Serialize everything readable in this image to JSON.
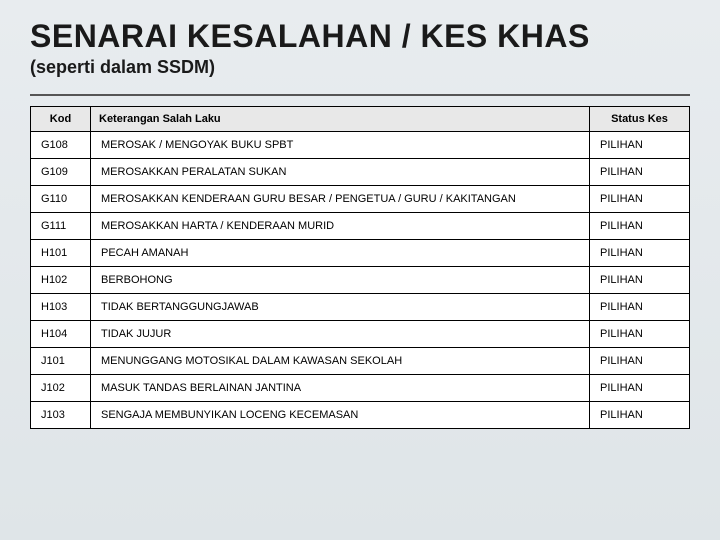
{
  "header": {
    "title": "SENARAI KESALAHAN / KES KHAS",
    "subtitle": "(seperti dalam SSDM)"
  },
  "table": {
    "columns": [
      "Kod",
      "Keterangan Salah Laku",
      "Status Kes"
    ],
    "rows": [
      {
        "kod": "G108",
        "keterangan": "MEROSAK / MENGOYAK BUKU SPBT",
        "status": "PILIHAN"
      },
      {
        "kod": "G109",
        "keterangan": "MEROSAKKAN PERALATAN SUKAN",
        "status": "PILIHAN"
      },
      {
        "kod": "G110",
        "keterangan": "MEROSAKKAN KENDERAAN GURU BESAR / PENGETUA / GURU / KAKITANGAN",
        "status": "PILIHAN"
      },
      {
        "kod": "G111",
        "keterangan": "MEROSAKKAN HARTA / KENDERAAN MURID",
        "status": "PILIHAN"
      },
      {
        "kod": "H101",
        "keterangan": "PECAH AMANAH",
        "status": "PILIHAN"
      },
      {
        "kod": "H102",
        "keterangan": "BERBOHONG",
        "status": "PILIHAN"
      },
      {
        "kod": "H103",
        "keterangan": "TIDAK BERTANGGUNGJAWAB",
        "status": "PILIHAN"
      },
      {
        "kod": "H104",
        "keterangan": "TIDAK JUJUR",
        "status": "PILIHAN"
      },
      {
        "kod": "J101",
        "keterangan": "MENUNGGANG MOTOSIKAL DALAM KAWASAN SEKOLAH",
        "status": "PILIHAN"
      },
      {
        "kod": "J102",
        "keterangan": "MASUK TANDAS BERLAINAN JANTINA",
        "status": "PILIHAN"
      },
      {
        "kod": "J103",
        "keterangan": "SENGAJA MEMBUNYIKAN LOCENG KECEMASAN",
        "status": "PILIHAN"
      }
    ]
  }
}
